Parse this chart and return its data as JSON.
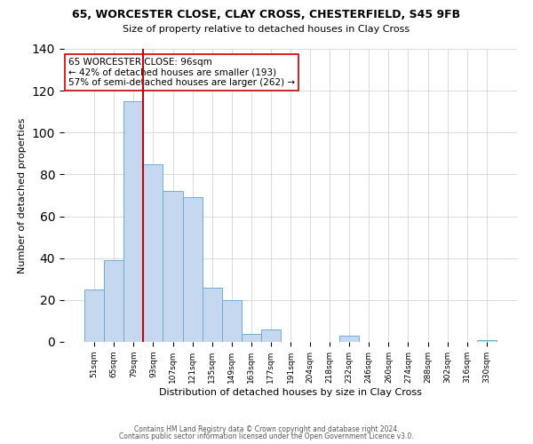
{
  "title": "65, WORCESTER CLOSE, CLAY CROSS, CHESTERFIELD, S45 9FB",
  "subtitle": "Size of property relative to detached houses in Clay Cross",
  "xlabel": "Distribution of detached houses by size in Clay Cross",
  "ylabel": "Number of detached properties",
  "bar_labels": [
    "51sqm",
    "65sqm",
    "79sqm",
    "93sqm",
    "107sqm",
    "121sqm",
    "135sqm",
    "149sqm",
    "163sqm",
    "177sqm",
    "191sqm",
    "204sqm",
    "218sqm",
    "232sqm",
    "246sqm",
    "260sqm",
    "274sqm",
    "288sqm",
    "302sqm",
    "316sqm",
    "330sqm"
  ],
  "bar_heights": [
    25,
    39,
    115,
    85,
    72,
    69,
    26,
    20,
    4,
    6,
    0,
    0,
    0,
    3,
    0,
    0,
    0,
    0,
    0,
    0,
    1
  ],
  "bar_color": "#c5d8f0",
  "bar_edge_color": "#6baed6",
  "vline_color": "#cc0000",
  "annotation_text": "65 WORCESTER CLOSE: 96sqm\n← 42% of detached houses are smaller (193)\n57% of semi-detached houses are larger (262) →",
  "annotation_box_color": "#ffffff",
  "annotation_box_edgecolor": "#cc0000",
  "ylim": [
    0,
    140
  ],
  "yticks": [
    0,
    20,
    40,
    60,
    80,
    100,
    120,
    140
  ],
  "footer_line1": "Contains HM Land Registry data © Crown copyright and database right 2024.",
  "footer_line2": "Contains public sector information licensed under the Open Government Licence v3.0.",
  "background_color": "#ffffff",
  "grid_color": "#cccccc",
  "title_fontsize": 9,
  "subtitle_fontsize": 8,
  "ylabel_fontsize": 8,
  "xlabel_fontsize": 8,
  "tick_fontsize": 6.5,
  "footer_fontsize": 5.5
}
